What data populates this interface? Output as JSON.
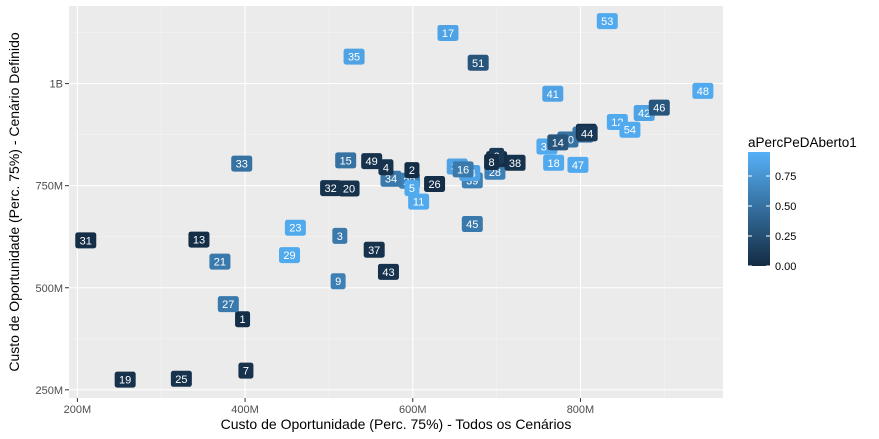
{
  "chart_data": {
    "type": "scatter",
    "xlabel": "Custo de Oportunidade (Perc. 75%) - Todos os Cenários",
    "ylabel": "Custo de Oportunidade (Perc. 75%) - Cenário Definido",
    "xlim": [
      190000000,
      970000000
    ],
    "ylim": [
      230000000,
      1190000000
    ],
    "x_ticks": [
      {
        "value": 200000000,
        "label": "200M"
      },
      {
        "value": 400000000,
        "label": "400M"
      },
      {
        "value": 600000000,
        "label": "600M"
      },
      {
        "value": 800000000,
        "label": "800M"
      }
    ],
    "y_ticks": [
      {
        "value": 250000000,
        "label": "250M"
      },
      {
        "value": 500000000,
        "label": "500M"
      },
      {
        "value": 750000000,
        "label": "750M"
      },
      {
        "value": 1000000000,
        "label": "1B"
      }
    ],
    "grid": true,
    "legend": {
      "title": "aPercPeDAberto1",
      "position": "right",
      "type": "colorbar",
      "range": [
        0,
        0.95
      ],
      "ticks": [
        {
          "value": 0.75,
          "label": "0.75"
        },
        {
          "value": 0.5,
          "label": "0.50"
        },
        {
          "value": 0.25,
          "label": "0.25"
        },
        {
          "value": 0.0,
          "label": "0.00"
        }
      ],
      "low_color": "#132b43",
      "high_color": "#56b1f7"
    },
    "colors": {
      "panel": "#ebebeb",
      "grid_major": "#ffffff",
      "grid_minor": "#f4f4f4"
    },
    "points": [
      {
        "label": "1",
        "x": 397000000,
        "y": 423000000,
        "c": 0.02
      },
      {
        "label": "3",
        "x": 513000000,
        "y": 627000000,
        "c": 0.55
      },
      {
        "label": "7",
        "x": 401000000,
        "y": 297000000,
        "c": 0.05
      },
      {
        "label": "9",
        "x": 511000000,
        "y": 516000000,
        "c": 0.6
      },
      {
        "label": "11",
        "x": 607000000,
        "y": 711000000,
        "c": 0.9
      },
      {
        "label": "12",
        "x": 844000000,
        "y": 906000000,
        "c": 0.9
      },
      {
        "label": "13",
        "x": 345000000,
        "y": 618000000,
        "c": 0.02
      },
      {
        "label": "15",
        "x": 520000000,
        "y": 812000000,
        "c": 0.5
      },
      {
        "label": "17",
        "x": 642000000,
        "y": 1124000000,
        "c": 0.85
      },
      {
        "label": "18",
        "x": 768000000,
        "y": 806000000,
        "c": 0.9
      },
      {
        "label": "19",
        "x": 257000000,
        "y": 275000000,
        "c": 0.05
      },
      {
        "label": "20",
        "x": 524000000,
        "y": 743000000,
        "c": 0.05
      },
      {
        "label": "21",
        "x": 370000000,
        "y": 564000000,
        "c": 0.55
      },
      {
        "label": "22",
        "x": 596000000,
        "y": 762000000,
        "c": 0.6
      },
      {
        "label": "23",
        "x": 460000000,
        "y": 647000000,
        "c": 0.9
      },
      {
        "label": "25",
        "x": 324000000,
        "y": 277000000,
        "c": 0.05
      },
      {
        "label": "26",
        "x": 626000000,
        "y": 754000000,
        "c": 0.02
      },
      {
        "label": "27",
        "x": 380000000,
        "y": 460000000,
        "c": 0.55
      },
      {
        "label": "28",
        "x": 698000000,
        "y": 784000000,
        "c": 0.6
      },
      {
        "label": "29",
        "x": 453000000,
        "y": 580000000,
        "c": 0.9
      },
      {
        "label": "30",
        "x": 760000000,
        "y": 846000000,
        "c": 0.9
      },
      {
        "label": "31",
        "x": 210000000,
        "y": 616000000,
        "c": 0.02
      },
      {
        "label": "32",
        "x": 502000000,
        "y": 744000000,
        "c": 0.05
      },
      {
        "label": "33",
        "x": 396000000,
        "y": 804000000,
        "c": 0.5
      },
      {
        "label": "34",
        "x": 574000000,
        "y": 767000000,
        "c": 0.55
      },
      {
        "label": "35",
        "x": 530000000,
        "y": 1066000000,
        "c": 0.85
      },
      {
        "label": "36",
        "x": 653000000,
        "y": 797000000,
        "c": 0.85
      },
      {
        "label": "37",
        "x": 554000000,
        "y": 593000000,
        "c": 0.05
      },
      {
        "label": "38",
        "x": 722000000,
        "y": 806000000,
        "c": 0.05
      },
      {
        "label": "39",
        "x": 671000000,
        "y": 763000000,
        "c": 0.6
      },
      {
        "label": "41",
        "x": 767000000,
        "y": 975000000,
        "c": 0.85
      },
      {
        "label": "42",
        "x": 876000000,
        "y": 928000000,
        "c": 0.85
      },
      {
        "label": "43",
        "x": 571000000,
        "y": 539000000,
        "c": 0.05
      },
      {
        "label": "45",
        "x": 671000000,
        "y": 656000000,
        "c": 0.55
      },
      {
        "label": "46",
        "x": 894000000,
        "y": 941000000,
        "c": 0.3
      },
      {
        "label": "47",
        "x": 797000000,
        "y": 801000000,
        "c": 0.9
      },
      {
        "label": "48",
        "x": 946000000,
        "y": 982000000,
        "c": 0.9
      },
      {
        "label": "49",
        "x": 551000000,
        "y": 810000000,
        "c": 0.05
      },
      {
        "label": "50",
        "x": 700000000,
        "y": 815000000,
        "c": 0.02
      },
      {
        "label": "51",
        "x": 678000000,
        "y": 1051000000,
        "c": 0.3
      },
      {
        "label": "52",
        "x": 803000000,
        "y": 875000000,
        "c": 0.55
      },
      {
        "label": "53",
        "x": 832000000,
        "y": 1153000000,
        "c": 0.9
      },
      {
        "label": "54",
        "x": 859000000,
        "y": 887000000,
        "c": 0.9
      },
      {
        "label": "2",
        "x": 599000000,
        "y": 788000000,
        "c": 0.02
      },
      {
        "label": "4",
        "x": 568000000,
        "y": 795000000,
        "c": 0.05
      },
      {
        "label": "5",
        "x": 599000000,
        "y": 744000000,
        "c": 0.9
      },
      {
        "label": "24",
        "x": 668000000,
        "y": 781000000,
        "c": 0.85
      },
      {
        "label": "10",
        "x": 785000000,
        "y": 863000000,
        "c": 0.5
      },
      {
        "label": "40",
        "x": 807000000,
        "y": 882000000,
        "c": 0.02
      },
      {
        "label": "44",
        "x": 808000000,
        "y": 878000000,
        "c": 0.1
      },
      {
        "label": "6",
        "x": 700000000,
        "y": 823000000,
        "c": 0.1
      },
      {
        "label": "8",
        "x": 694000000,
        "y": 808000000,
        "c": 0.02
      },
      {
        "label": "14",
        "x": 773000000,
        "y": 856000000,
        "c": 0.3
      },
      {
        "label": "16",
        "x": 660000000,
        "y": 790000000,
        "c": 0.55
      }
    ]
  }
}
